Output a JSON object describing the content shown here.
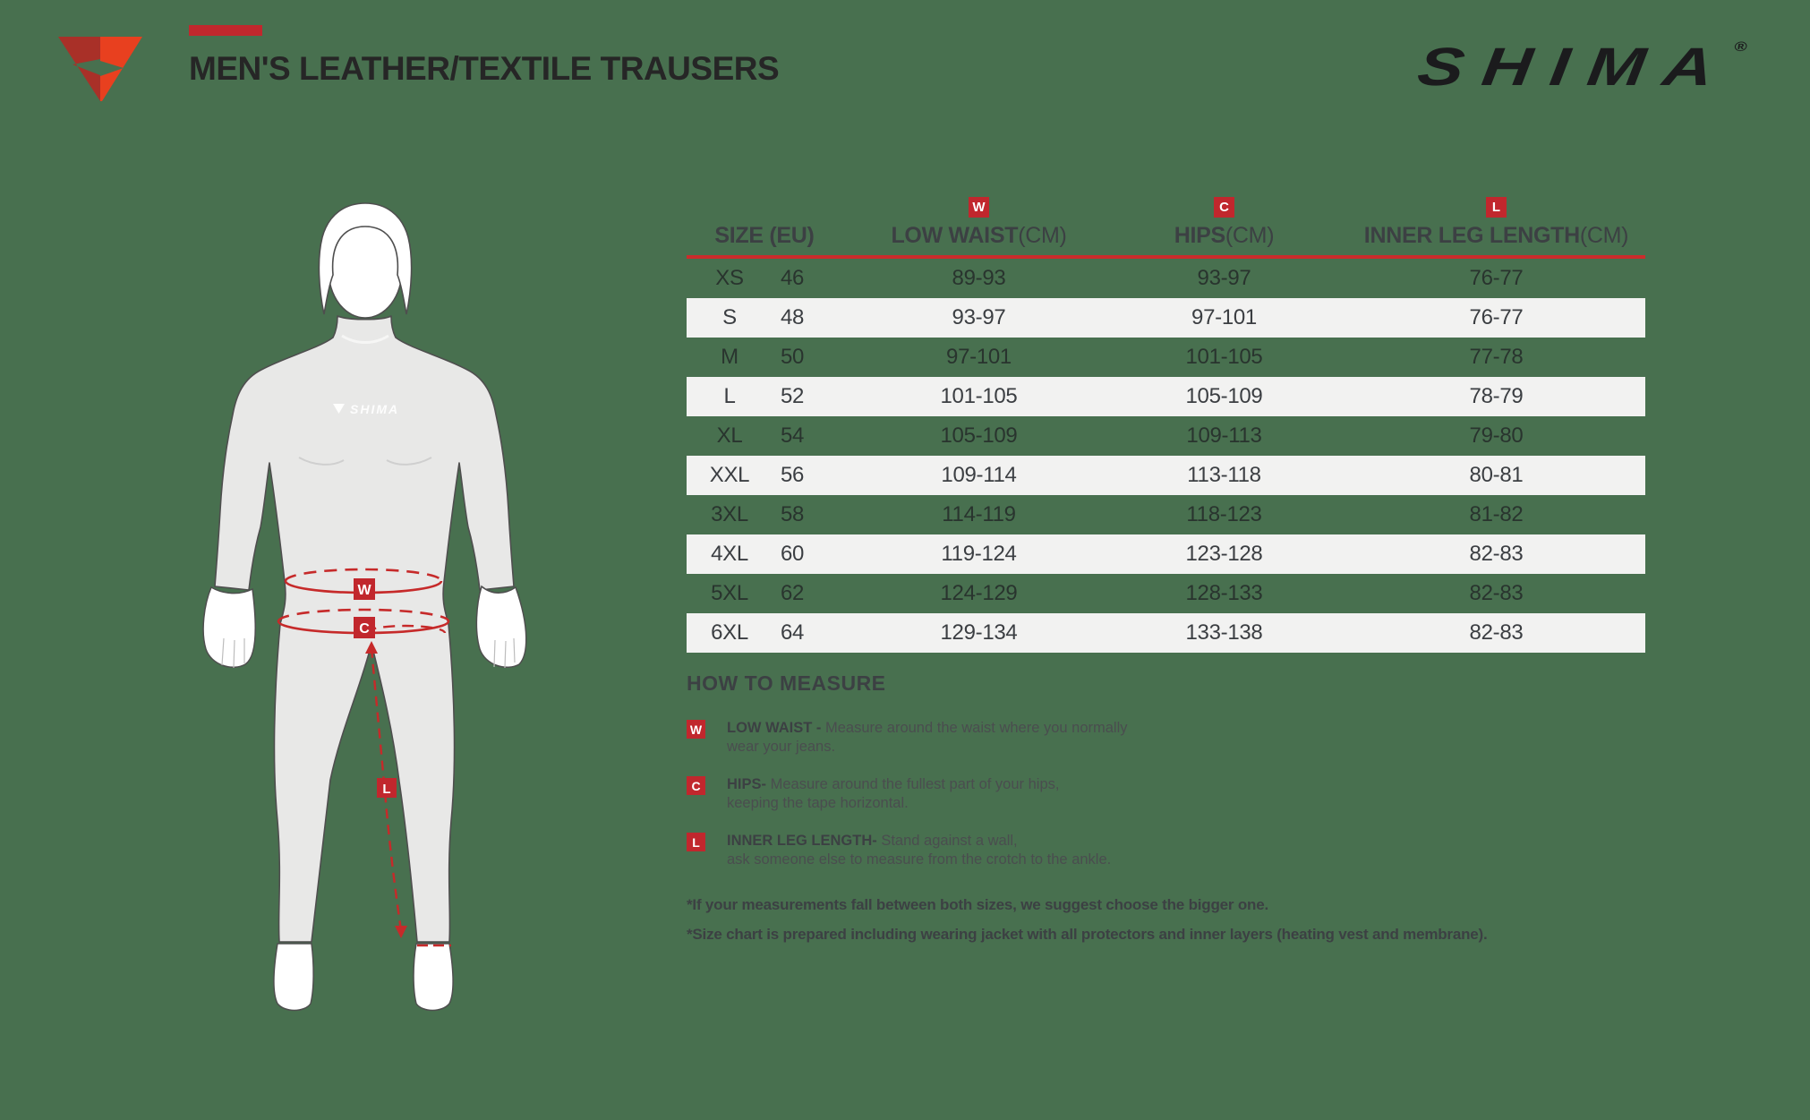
{
  "header": {
    "title": "MEN'S LEATHER/TEXTILE TRAUSERS",
    "brand_wordmark": "SHIMA",
    "brand_registered": "®"
  },
  "figure": {
    "watermark": "SHIMA",
    "marker_waist": "W",
    "marker_hips": "C",
    "marker_inner_leg": "L"
  },
  "table": {
    "columns": [
      {
        "key": "size",
        "label": "SIZE (EU)",
        "unit": "",
        "badge": ""
      },
      {
        "key": "low_waist",
        "label": "LOW WAIST",
        "unit": "(CM)",
        "badge": "W"
      },
      {
        "key": "hips",
        "label": "HIPS",
        "unit": "(CM)",
        "badge": "C"
      },
      {
        "key": "inner_leg",
        "label": "INNER LEG LENGTH",
        "unit": "(CM)",
        "badge": "L"
      }
    ],
    "rows": [
      {
        "size": "XS",
        "eu": "46",
        "low_waist": "89-93",
        "hips": "93-97",
        "inner_leg": "76-77"
      },
      {
        "size": "S",
        "eu": "48",
        "low_waist": "93-97",
        "hips": "97-101",
        "inner_leg": "76-77"
      },
      {
        "size": "M",
        "eu": "50",
        "low_waist": "97-101",
        "hips": "101-105",
        "inner_leg": "77-78"
      },
      {
        "size": "L",
        "eu": "52",
        "low_waist": "101-105",
        "hips": "105-109",
        "inner_leg": "78-79"
      },
      {
        "size": "XL",
        "eu": "54",
        "low_waist": "105-109",
        "hips": "109-113",
        "inner_leg": "79-80"
      },
      {
        "size": "XXL",
        "eu": "56",
        "low_waist": "109-114",
        "hips": "113-118",
        "inner_leg": "80-81"
      },
      {
        "size": "3XL",
        "eu": "58",
        "low_waist": "114-119",
        "hips": "118-123",
        "inner_leg": "81-82"
      },
      {
        "size": "4XL",
        "eu": "60",
        "low_waist": "119-124",
        "hips": "123-128",
        "inner_leg": "82-83"
      },
      {
        "size": "5XL",
        "eu": "62",
        "low_waist": "124-129",
        "hips": "128-133",
        "inner_leg": "82-83"
      },
      {
        "size": "6XL",
        "eu": "64",
        "low_waist": "129-134",
        "hips": "133-138",
        "inner_leg": "82-83"
      }
    ]
  },
  "how_to_measure": {
    "heading": "HOW TO MEASURE",
    "items": [
      {
        "badge": "W",
        "label": "LOW WAIST -",
        "line1": "Measure around the waist where you normally",
        "line2": "wear your jeans."
      },
      {
        "badge": "C",
        "label": "HIPS-",
        "line1": "Measure around the fullest part of your hips,",
        "line2": "keeping the tape horizontal."
      },
      {
        "badge": "L",
        "label": "INNER LEG LENGTH-",
        "line1": "Stand against a wall,",
        "line2": "ask someone else to measure from the crotch to the ankle."
      }
    ],
    "notes": [
      "*If your measurements fall between both sizes, we suggest choose the bigger one.",
      "*Size chart is prepared including wearing jacket with all protectors and inner layers (heating vest and membrane)."
    ]
  },
  "colors": {
    "background": "#48704F",
    "row_stripe": "#F2F2F1",
    "accent_red": "#C1272D",
    "rule_red": "#CB2C2C",
    "text_dark": "#3C4043",
    "title": "#262626",
    "brand": "#1B1B1D",
    "logo_dark_red": "#A93028",
    "logo_bright_red": "#E8401F"
  }
}
